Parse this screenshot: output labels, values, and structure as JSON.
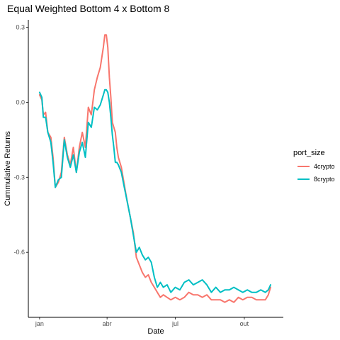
{
  "chart_data": {
    "type": "line",
    "title": "Equal Weighted Bottom 4 x Bottom 8",
    "xlabel": "Date",
    "ylabel": "Cummulative Returns",
    "x_ticks": [
      {
        "label": "jan",
        "x": 5
      },
      {
        "label": "abr",
        "x": 95
      },
      {
        "label": "jul",
        "x": 186
      },
      {
        "label": "out",
        "x": 278
      }
    ],
    "y_ticks": [
      {
        "label": "0.3",
        "y": 0.3
      },
      {
        "label": "0.0",
        "y": 0.0
      },
      {
        "label": "-0.3",
        "y": -0.3
      },
      {
        "label": "-0.6",
        "y": -0.6
      }
    ],
    "xlim": [
      -10,
      330
    ],
    "ylim": [
      -0.86,
      0.33
    ],
    "grid": false,
    "legend": {
      "title": "port_size",
      "position": "right"
    },
    "x": [
      5,
      8,
      10,
      13,
      16,
      20,
      23,
      26,
      30,
      34,
      38,
      42,
      46,
      50,
      54,
      58,
      62,
      66,
      70,
      74,
      78,
      82,
      86,
      90,
      92,
      94,
      96,
      98,
      100,
      102,
      104,
      106,
      108,
      110,
      114,
      118,
      122,
      126,
      130,
      134,
      138,
      142,
      146,
      150,
      154,
      158,
      162,
      166,
      170,
      175,
      180,
      186,
      192,
      198,
      204,
      210,
      216,
      222,
      228,
      234,
      240,
      246,
      252,
      258,
      264,
      270,
      276,
      282,
      288,
      294,
      300,
      306,
      310,
      313
    ],
    "series": [
      {
        "name": "4crypto",
        "color": "#F8766D",
        "values": [
          0.03,
          0.01,
          -0.05,
          -0.04,
          -0.12,
          -0.14,
          -0.22,
          -0.34,
          -0.32,
          -0.28,
          -0.14,
          -0.21,
          -0.25,
          -0.18,
          -0.28,
          -0.18,
          -0.12,
          -0.18,
          -0.02,
          -0.05,
          0.05,
          0.1,
          0.14,
          0.22,
          0.27,
          0.27,
          0.22,
          0.1,
          0.02,
          -0.08,
          -0.1,
          -0.12,
          -0.18,
          -0.22,
          -0.26,
          -0.33,
          -0.4,
          -0.46,
          -0.52,
          -0.62,
          -0.65,
          -0.68,
          -0.7,
          -0.69,
          -0.72,
          -0.74,
          -0.76,
          -0.78,
          -0.77,
          -0.78,
          -0.79,
          -0.78,
          -0.79,
          -0.78,
          -0.76,
          -0.77,
          -0.77,
          -0.78,
          -0.77,
          -0.79,
          -0.79,
          -0.79,
          -0.8,
          -0.79,
          -0.8,
          -0.78,
          -0.79,
          -0.78,
          -0.78,
          -0.79,
          -0.79,
          -0.79,
          -0.77,
          -0.74
        ]
      },
      {
        "name": "8crypto",
        "color": "#00BFC4",
        "values": [
          0.04,
          0.02,
          -0.06,
          -0.06,
          -0.12,
          -0.16,
          -0.24,
          -0.34,
          -0.31,
          -0.3,
          -0.15,
          -0.22,
          -0.26,
          -0.21,
          -0.28,
          -0.2,
          -0.16,
          -0.22,
          -0.08,
          -0.1,
          -0.02,
          -0.03,
          -0.01,
          0.03,
          0.05,
          0.05,
          0.04,
          0.0,
          -0.06,
          -0.13,
          -0.18,
          -0.24,
          -0.24,
          -0.25,
          -0.28,
          -0.34,
          -0.4,
          -0.46,
          -0.53,
          -0.6,
          -0.58,
          -0.61,
          -0.63,
          -0.62,
          -0.64,
          -0.7,
          -0.74,
          -0.72,
          -0.74,
          -0.73,
          -0.76,
          -0.74,
          -0.75,
          -0.72,
          -0.71,
          -0.73,
          -0.72,
          -0.71,
          -0.73,
          -0.76,
          -0.74,
          -0.76,
          -0.75,
          -0.75,
          -0.74,
          -0.75,
          -0.76,
          -0.75,
          -0.76,
          -0.76,
          -0.75,
          -0.76,
          -0.75,
          -0.73
        ]
      }
    ]
  }
}
